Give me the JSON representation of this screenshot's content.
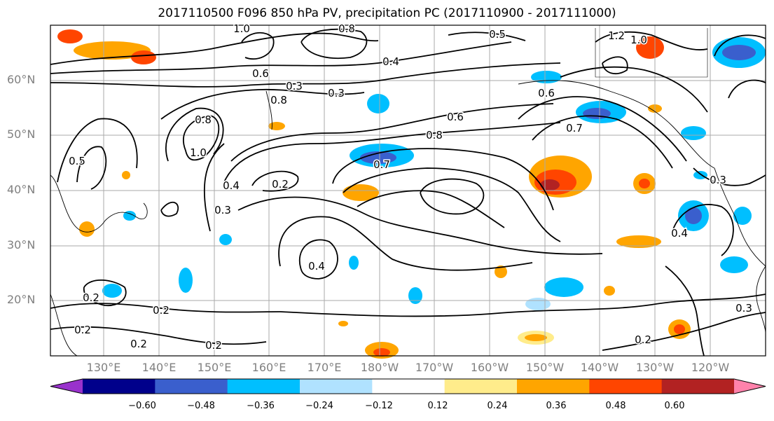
{
  "title": "2017110500 F096 850 hPa PV, precipitation PC (2017110900 - 2017111000)",
  "lat_labels": [
    "60°N",
    "50°N",
    "40°N",
    "30°N",
    "20°N"
  ],
  "lon_labels": [
    "130°E",
    "140°E",
    "150°E",
    "160°E",
    "170°E",
    "180°W",
    "170°W",
    "160°W",
    "150°W",
    "140°W",
    "130°W",
    "120°W"
  ],
  "colorbar": {
    "colors": [
      "#9932cc",
      "#00008b",
      "#3a5fcd",
      "#00bfff",
      "#b0e2ff",
      "#ffffff",
      "#ffec8b",
      "#ffa500",
      "#ff4500",
      "#b22222",
      "#ff82ab"
    ],
    "tick_labels": [
      "−0.60",
      "−0.48",
      "−0.36",
      "−0.24",
      "−0.12",
      "0.12",
      "0.24",
      "0.36",
      "0.48",
      "0.60"
    ]
  },
  "contour_labels": [
    "1.0",
    "0.8",
    "0.5",
    "1.2",
    "1.0",
    "0.4",
    "0.3",
    "0.3",
    "0.6",
    "0.8",
    "0.6",
    "0.7",
    "0.8",
    "0.6",
    "0.7",
    "1.0",
    "0.4",
    "0.2",
    "0.8",
    "0.3",
    "0.5",
    "0.3",
    "0.4",
    "0.2",
    "0.2",
    "0.2",
    "0.2",
    "0.2",
    "0.2",
    "0.4",
    "0.3"
  ]
}
